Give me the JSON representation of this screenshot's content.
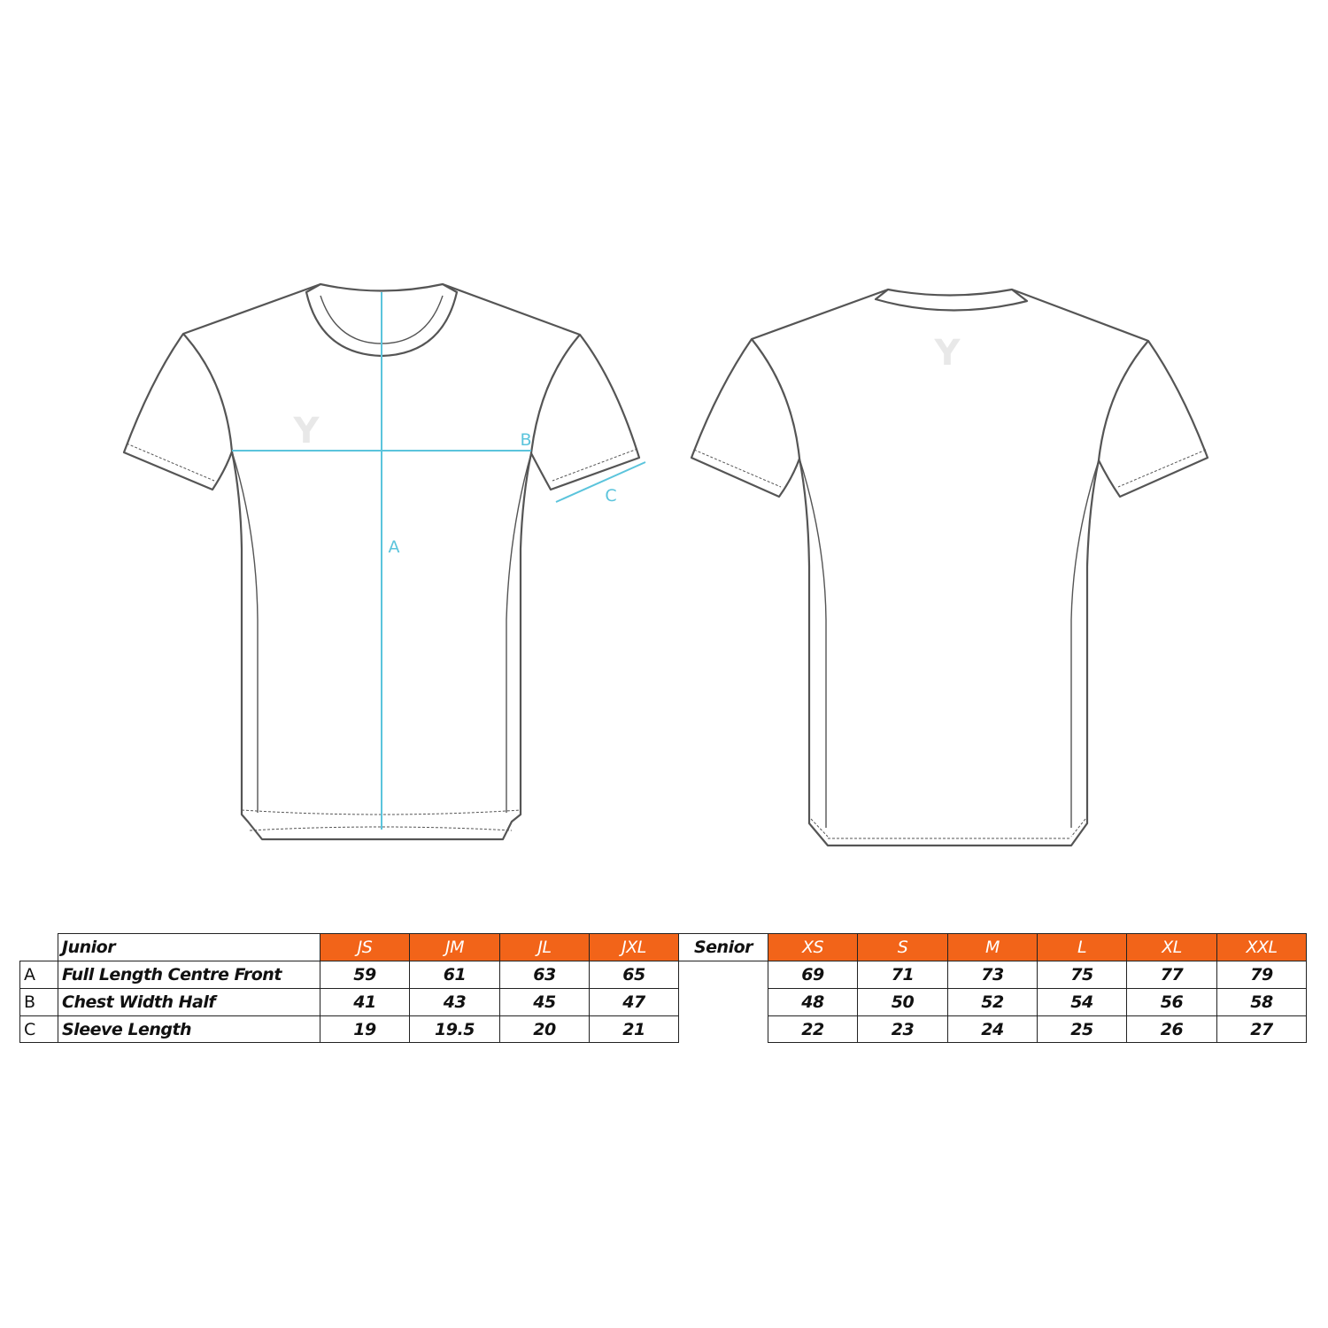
{
  "diagram": {
    "measure_labels": {
      "A": "A",
      "B": "B",
      "C": "C"
    },
    "logo_text": "Y",
    "colors": {
      "measure_line": "#5bc4dc",
      "outline": "#555555",
      "header": "#f26419"
    }
  },
  "table": {
    "junior": {
      "label": "Junior",
      "sizes": [
        "JS",
        "JM",
        "JL",
        "JXL"
      ],
      "rows": [
        {
          "letter": "A",
          "name": "Full Length Centre Front",
          "values": [
            "59",
            "61",
            "63",
            "65"
          ]
        },
        {
          "letter": "B",
          "name": "Chest Width Half",
          "values": [
            "41",
            "43",
            "45",
            "47"
          ]
        },
        {
          "letter": "C",
          "name": "Sleeve Length",
          "values": [
            "19",
            "19.5",
            "20",
            "21"
          ]
        }
      ]
    },
    "senior": {
      "label": "Senior",
      "sizes": [
        "XS",
        "S",
        "M",
        "L",
        "XL",
        "XXL"
      ],
      "rows": [
        {
          "values": [
            "69",
            "71",
            "73",
            "75",
            "77",
            "79"
          ]
        },
        {
          "values": [
            "48",
            "50",
            "52",
            "54",
            "56",
            "58"
          ]
        },
        {
          "values": [
            "22",
            "23",
            "24",
            "25",
            "26",
            "27"
          ]
        }
      ]
    }
  }
}
